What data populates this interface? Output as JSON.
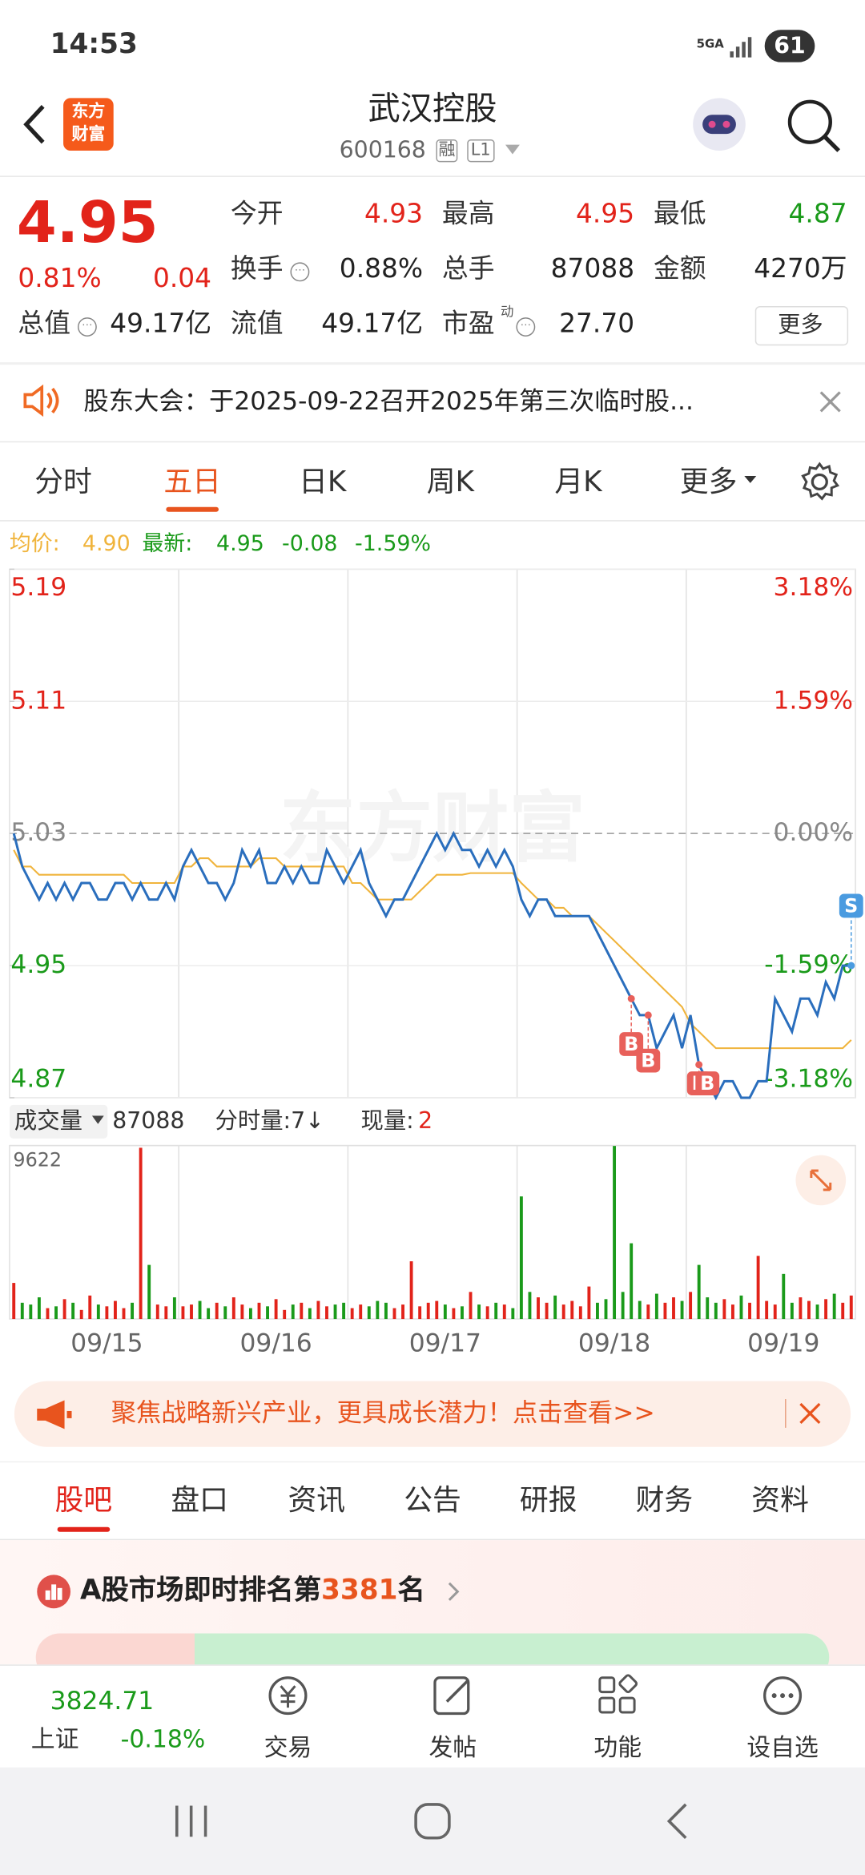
{
  "status_bar": {
    "time": "14:53",
    "network": "5GA",
    "battery": "61"
  },
  "header": {
    "logo": [
      "东方",
      "财富"
    ],
    "title": "武汉控股",
    "code": "600168",
    "tags": [
      "融",
      "L1"
    ]
  },
  "quote": {
    "price": "4.95",
    "change_pct": "0.81%",
    "change": "0.04",
    "fields": [
      {
        "label": "今开",
        "value": "4.93"
      },
      {
        "label": "最高",
        "value": "4.95"
      },
      {
        "label": "最低",
        "value": "4.87"
      },
      {
        "label": "换手",
        "value": "0.88%"
      },
      {
        "label": "总手",
        "value": "87088"
      },
      {
        "label": "金额",
        "value": "4270万"
      },
      {
        "label": "总值",
        "value": "49.17亿"
      },
      {
        "label": "流值",
        "value": "49.17亿"
      },
      {
        "label": "市盈",
        "sup": "动",
        "value": "27.70"
      }
    ],
    "more": "更多"
  },
  "notice": {
    "text": "股东大会：于2025-09-22召开2025年第三次临时股..."
  },
  "chart_tabs": {
    "items": [
      "分时",
      "五日",
      "日K",
      "周K",
      "月K",
      "更多"
    ],
    "active": 1
  },
  "chart_data": [
    {
      "type": "line",
      "watermark": "东方财富",
      "change": "-0.08",
      "change_pct": "-1.59%",
      "series": [
        {
          "name": "均价:",
          "color": "#f0b43c",
          "legend_value": "4.90",
          "values": [
            5.02,
            5.01,
            5.01,
            5.005,
            5.005,
            5.005,
            5.005,
            5.005,
            5.005,
            5.005,
            5.005,
            5.005,
            5.005,
            5.005,
            5.0,
            5.0,
            5.0,
            5.0,
            5.0,
            5.0,
            5.01,
            5.01,
            5.015,
            5.015,
            5.01,
            5.01,
            5.01,
            5.01,
            5.01,
            5.015,
            5.015,
            5.015,
            5.01,
            5.01,
            5.01,
            5.01,
            5.01,
            5.01,
            5.01,
            5.01,
            5.0,
            5.0,
            4.995,
            4.99,
            4.99,
            4.99,
            4.99,
            4.99,
            4.995,
            5.0,
            5.005,
            5.005,
            5.005,
            5.005,
            5.006,
            5.006,
            5.006,
            5.006,
            5.006,
            5.006,
            5.0,
            4.995,
            4.99,
            4.99,
            4.985,
            4.985,
            4.98,
            4.98,
            4.98,
            4.975,
            4.97,
            4.965,
            4.96,
            4.955,
            4.95,
            4.945,
            4.94,
            4.935,
            4.93,
            4.925,
            4.915,
            4.91,
            4.905,
            4.9,
            4.9,
            4.9,
            4.9,
            4.9,
            4.9,
            4.9,
            4.9,
            4.9,
            4.9,
            4.9,
            4.9,
            4.9,
            4.9,
            4.9,
            4.9,
            4.905
          ]
        },
        {
          "name": "最新:",
          "color": "#2a6ebd",
          "legend_value": "4.95",
          "values": [
            5.03,
            5.01,
            5.0,
            4.99,
            5.0,
            4.99,
            5.0,
            4.99,
            5.0,
            5.0,
            4.99,
            4.99,
            5.0,
            5.0,
            4.99,
            5.0,
            4.99,
            4.99,
            5.0,
            4.99,
            5.01,
            5.02,
            5.01,
            5.0,
            5.0,
            4.99,
            5.0,
            5.02,
            5.01,
            5.02,
            5.0,
            5.0,
            5.01,
            5.0,
            5.01,
            5.0,
            5.0,
            5.02,
            5.01,
            5.0,
            5.01,
            5.02,
            5.0,
            4.99,
            4.98,
            4.99,
            4.99,
            5.0,
            5.01,
            5.02,
            5.03,
            5.02,
            5.03,
            5.02,
            5.02,
            5.01,
            5.02,
            5.01,
            5.02,
            5.01,
            4.99,
            4.98,
            4.99,
            4.99,
            4.98,
            4.98,
            4.98,
            4.98,
            4.98,
            4.97,
            4.96,
            4.95,
            4.94,
            4.93,
            4.92,
            4.92,
            4.9,
            4.91,
            4.92,
            4.9,
            4.92,
            4.89,
            4.88,
            4.87,
            4.88,
            4.88,
            4.87,
            4.87,
            4.88,
            4.88,
            4.93,
            4.92,
            4.91,
            4.93,
            4.93,
            4.92,
            4.94,
            4.93,
            4.95,
            4.95
          ]
        }
      ],
      "ylim": [
        4.87,
        5.19
      ],
      "yticks": [
        5.19,
        5.11,
        5.03,
        4.95,
        4.87
      ],
      "y2lim": [
        -3.18,
        3.18
      ],
      "y2ticks": [
        {
          "value": 3.18,
          "label": "3.18%"
        },
        {
          "value": 1.59,
          "label": "1.59%"
        },
        {
          "value": 0,
          "label": "0.00%"
        },
        {
          "value": -1.59,
          "label": "-1.59%"
        },
        {
          "value": -3.18,
          "label": "-3.18%"
        }
      ],
      "annotations": [
        {
          "text": "B",
          "index": 73
        },
        {
          "text": "B",
          "index": 75
        },
        {
          "text": "B",
          "index": 81
        },
        {
          "text": "B",
          "index": 82
        },
        {
          "text": "S",
          "index": 99
        }
      ]
    },
    {
      "type": "bar",
      "title": "成交量",
      "total": "87088",
      "tick_volume": "分时量:7↓",
      "current_label": "现量:",
      "current_value": "2",
      "categories": [
        null,
        null,
        null,
        null,
        null,
        null,
        null,
        null,
        null,
        null,
        null,
        "09/15",
        null,
        null,
        null,
        null,
        null,
        null,
        null,
        null,
        null,
        null,
        null,
        null,
        null,
        null,
        null,
        null,
        null,
        null,
        null,
        "09/16",
        null,
        null,
        null,
        null,
        null,
        null,
        null,
        null,
        null,
        null,
        null,
        null,
        null,
        null,
        null,
        null,
        null,
        null,
        null,
        "09/17",
        null,
        null,
        null,
        null,
        null,
        null,
        null,
        null,
        null,
        null,
        null,
        null,
        null,
        null,
        null,
        null,
        null,
        null,
        null,
        "09/18",
        null,
        null,
        null,
        null,
        null,
        null,
        null,
        null,
        null,
        null,
        null,
        null,
        null,
        null,
        null,
        null,
        null,
        null,
        null,
        "09/19",
        null,
        null,
        null,
        null,
        null,
        null,
        null,
        null
      ],
      "values": [
        2000,
        900,
        800,
        1200,
        600,
        700,
        1100,
        900,
        500,
        1300,
        800,
        700,
        1000,
        600,
        900,
        9500,
        3000,
        800,
        700,
        1200,
        700,
        800,
        1000,
        600,
        900,
        700,
        1200,
        800,
        600,
        900,
        700,
        1100,
        500,
        800,
        900,
        600,
        1000,
        700,
        800,
        900,
        600,
        800,
        700,
        1000,
        900,
        600,
        800,
        3200,
        700,
        900,
        1000,
        800,
        600,
        700,
        1500,
        800,
        700,
        900,
        800,
        600,
        6800,
        1500,
        1200,
        900,
        1300,
        800,
        1000,
        700,
        1800,
        900,
        1100,
        9600,
        1500,
        4200,
        1000,
        800,
        1400,
        900,
        1200,
        1000,
        1500,
        3000,
        1200,
        900,
        1100,
        800,
        1300,
        900,
        3500,
        1000,
        800,
        2500,
        900,
        1200,
        1000,
        800,
        1100,
        1400,
        900,
        1300
      ],
      "ylim": [
        0,
        9622
      ],
      "yticks": [
        9622
      ]
    }
  ],
  "banner": {
    "text": "聚焦战略新兴产业，更具成长潜力！点击查看>>"
  },
  "section_tabs": {
    "items": [
      "股吧",
      "盘口",
      "资讯",
      "公告",
      "研报",
      "财务",
      "资料"
    ],
    "active": 0
  },
  "ranking": {
    "prefix": "A股市场即时排名第",
    "rank": "3381",
    "suffix": "名"
  },
  "bottom_bar": {
    "index_value": "3824.71",
    "index_name": "上证",
    "index_change": "-0.18%",
    "items": [
      "交易",
      "发帖",
      "功能",
      "设自选"
    ]
  }
}
